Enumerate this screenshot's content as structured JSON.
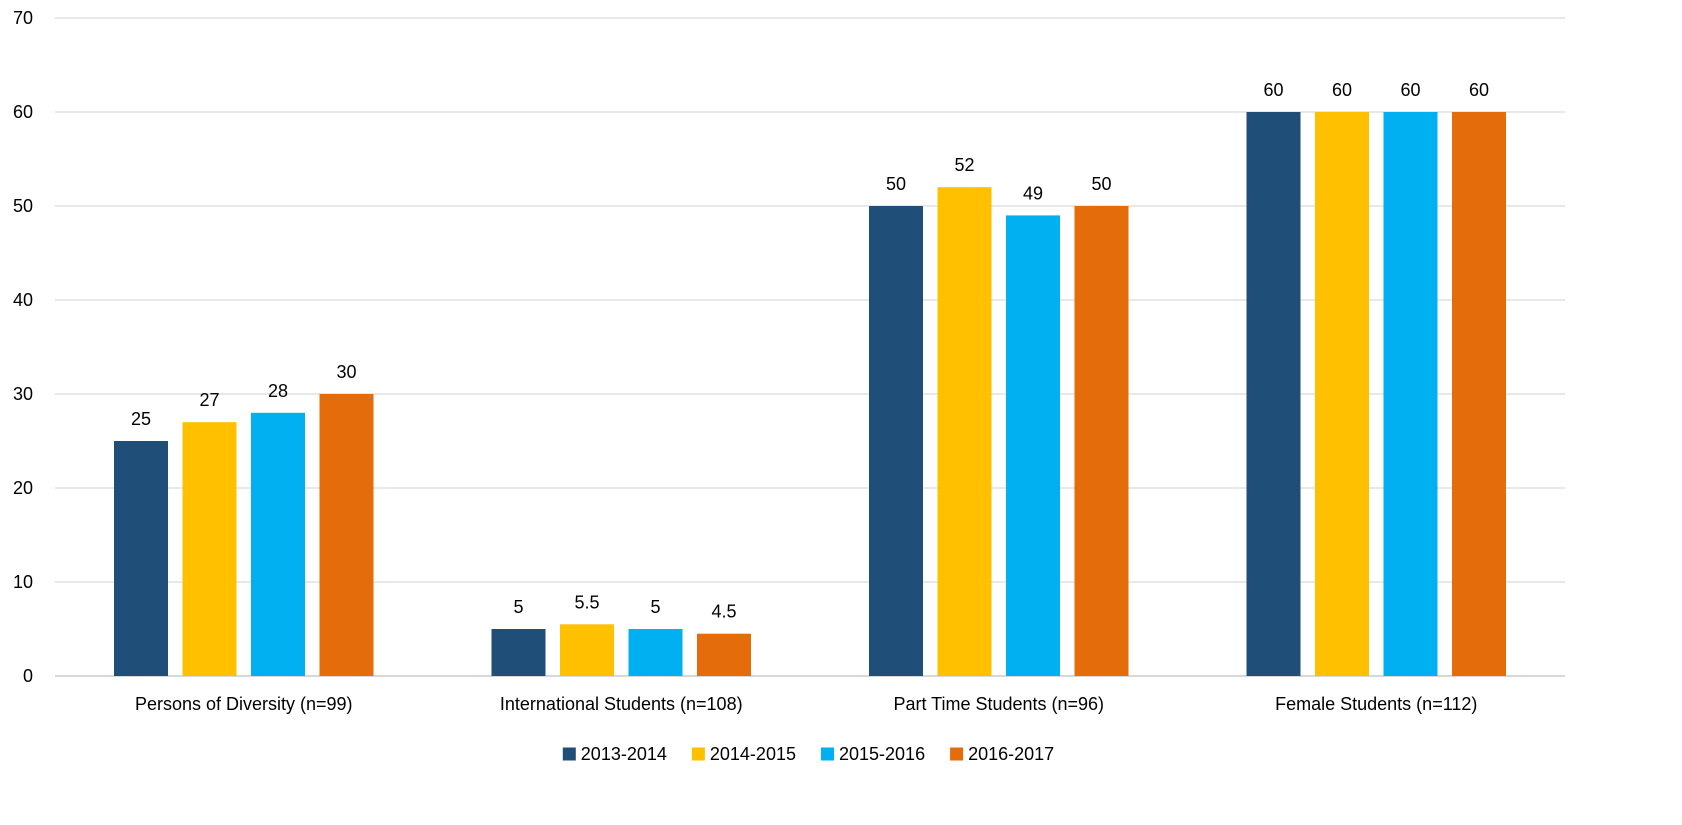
{
  "chart_data": {
    "type": "bar",
    "categories": [
      "Persons of Diversity (n=99)",
      "International Students (n=108)",
      "Part Time Students (n=96)",
      "Female Students (n=112)"
    ],
    "series": [
      {
        "name": "2013-2014",
        "color": "#1F4E79",
        "values": [
          25,
          5,
          50,
          60
        ],
        "labels": [
          "25",
          "5",
          "50",
          "60"
        ]
      },
      {
        "name": "2014-2015",
        "color": "#FFC000",
        "values": [
          27,
          5.5,
          52,
          60
        ],
        "labels": [
          "27",
          "5.5",
          "52",
          "60"
        ]
      },
      {
        "name": "2015-2016",
        "color": "#00B0F0",
        "values": [
          28,
          5,
          49,
          60
        ],
        "labels": [
          "28",
          "5",
          "49",
          "60"
        ]
      },
      {
        "name": "2016-2017",
        "color": "#E46C0A",
        "values": [
          30,
          4.5,
          50,
          60
        ],
        "labels": [
          "30",
          "4.5",
          "50",
          "60"
        ]
      }
    ],
    "ylim": [
      0,
      70
    ],
    "yticks": [
      "0",
      "10",
      "20",
      "30",
      "40",
      "50",
      "60",
      "70"
    ],
    "grid": true,
    "legend_position": "bottom",
    "title": "",
    "xlabel": "",
    "ylabel": ""
  }
}
